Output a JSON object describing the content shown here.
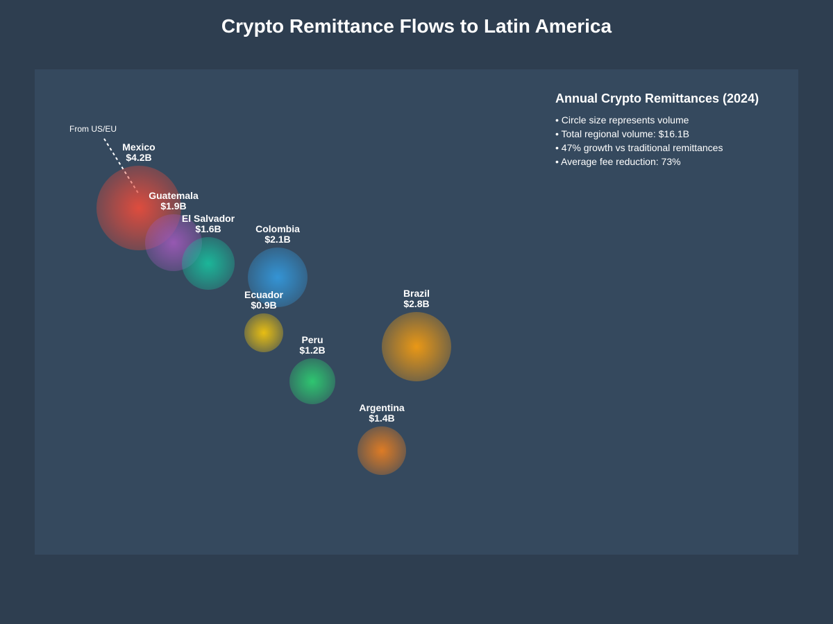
{
  "title": "Crypto Remittance Flows to Latin America",
  "origin_label": "From US/EU",
  "legend": {
    "title": "Annual Crypto Remittances (2024)",
    "notes": [
      "Circle size represents volume",
      "Total regional volume: $16.1B",
      "47% growth vs traditional remittances",
      "Average fee reduction: 73%"
    ]
  },
  "countries": [
    {
      "name": "Mexico",
      "value_label": "$4.2B",
      "value": 4.2,
      "color": "#e74c3c"
    },
    {
      "name": "Guatemala",
      "value_label": "$1.9B",
      "value": 1.9,
      "color": "#9b59b6"
    },
    {
      "name": "El Salvador",
      "value_label": "$1.6B",
      "value": 1.6,
      "color": "#1abc9c"
    },
    {
      "name": "Colombia",
      "value_label": "$2.1B",
      "value": 2.1,
      "color": "#3498db"
    },
    {
      "name": "Ecuador",
      "value_label": "$0.9B",
      "value": 0.9,
      "color": "#f1c40f"
    },
    {
      "name": "Peru",
      "value_label": "$1.2B",
      "value": 1.2,
      "color": "#2ecc71"
    },
    {
      "name": "Brazil",
      "value_label": "$2.8B",
      "value": 2.8,
      "color": "#f39c12"
    },
    {
      "name": "Argentina",
      "value_label": "$1.4B",
      "value": 1.4,
      "color": "#e67e22"
    }
  ]
}
